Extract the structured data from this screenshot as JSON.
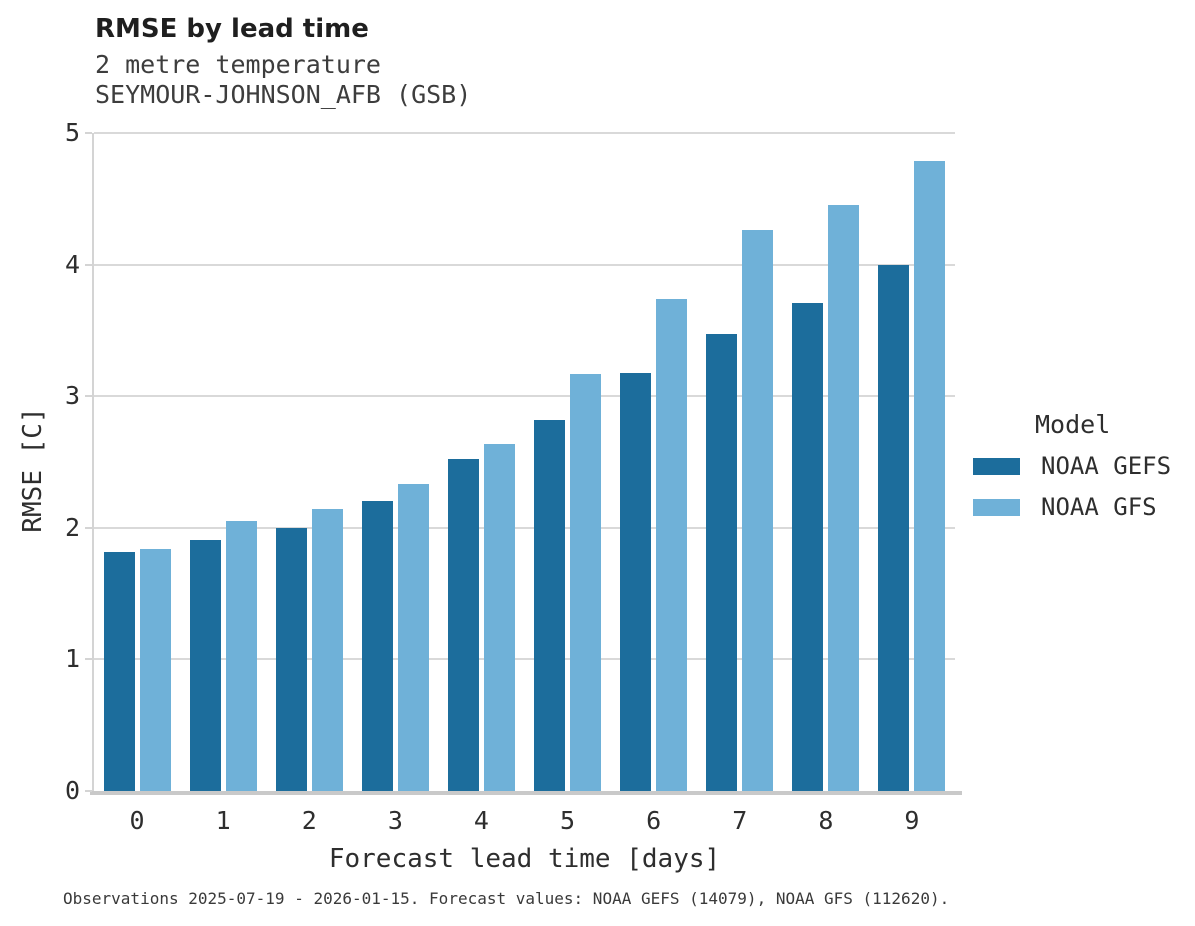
{
  "chart_data": {
    "type": "bar",
    "title": "RMSE by lead time",
    "subtitle": [
      "2 metre temperature",
      "SEYMOUR-JOHNSON_AFB (GSB)"
    ],
    "categories": [
      "0",
      "1",
      "2",
      "3",
      "4",
      "5",
      "6",
      "7",
      "8",
      "9"
    ],
    "series": [
      {
        "name": "NOAA GEFS",
        "color": "#1C6D9C",
        "values": [
          1.82,
          1.91,
          2.0,
          2.2,
          2.52,
          2.82,
          3.18,
          3.47,
          3.71,
          4.0
        ]
      },
      {
        "name": "NOAA GFS",
        "color": "#6FB1D8",
        "values": [
          1.84,
          2.05,
          2.14,
          2.33,
          2.64,
          3.17,
          3.74,
          4.26,
          4.45,
          4.79
        ]
      }
    ],
    "xlabel": "Forecast lead time [days]",
    "ylabel": "RMSE [C]",
    "ylim": [
      0,
      5
    ],
    "yticks": [
      0,
      1,
      2,
      3,
      4,
      5
    ],
    "legend_title": "Model",
    "legend_position": "right",
    "grid": true
  },
  "caption": "Observations 2025-07-19 - 2026-01-15. Forecast values: NOAA GEFS (14079), NOAA GFS (112620).",
  "colors": {
    "noaa_gefs": "#1C6D9C",
    "noaa_gfs": "#6FB1D8",
    "gridline": "#D9D9D9",
    "axis": "#C9C9C9",
    "text": "#2E2E2E"
  }
}
